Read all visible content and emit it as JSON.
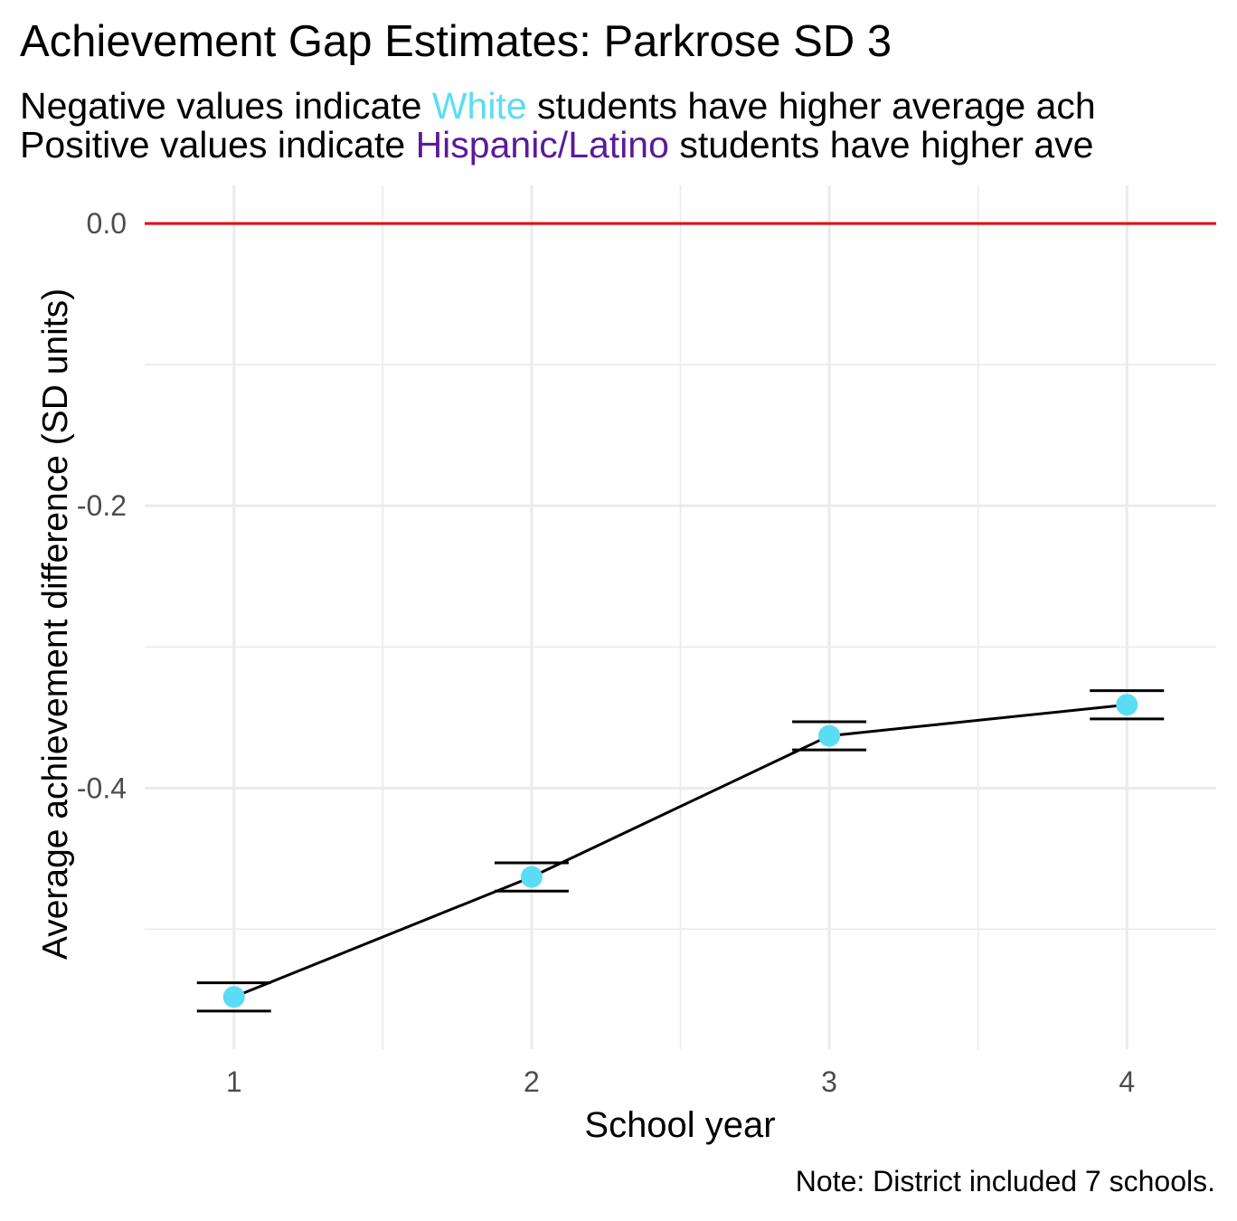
{
  "title": "Achievement Gap Estimates: Parkrose SD 3",
  "subtitle": {
    "line1": {
      "prefix": "Negative values indicate ",
      "group": "White",
      "suffix": " students have higher average ach"
    },
    "line2": {
      "prefix": "Positive values indicate ",
      "group": "Hispanic/Latino",
      "suffix": " students have higher ave"
    }
  },
  "caption": "Note: District included 7 schools.",
  "colors": {
    "white_group": "#5bdcf5",
    "hispanic_group": "#5c1a99",
    "reference_line": "#e8000b",
    "point": "#5bdcf5",
    "line": "#000000",
    "grid": "#ebebeb"
  },
  "chart_data": {
    "type": "line",
    "title": "Achievement Gap Estimates: Parkrose SD 3",
    "xlabel": "School year",
    "ylabel": "Average achievement difference (SD units)",
    "x": [
      1,
      2,
      3,
      4
    ],
    "xticks": [
      "1",
      "2",
      "3",
      "4"
    ],
    "y": [
      -0.548,
      -0.463,
      -0.363,
      -0.341
    ],
    "error_low": [
      -0.558,
      -0.473,
      -0.373,
      -0.351
    ],
    "error_high": [
      -0.538,
      -0.453,
      -0.353,
      -0.331
    ],
    "yticks": [
      "0.0",
      "-0.2",
      "-0.4"
    ],
    "ytick_values": [
      0.0,
      -0.2,
      -0.4
    ],
    "ylim": [
      -0.585,
      0.027
    ],
    "xlim": [
      0.7,
      4.3
    ],
    "reference_line_y": 0.0,
    "grid": true
  }
}
